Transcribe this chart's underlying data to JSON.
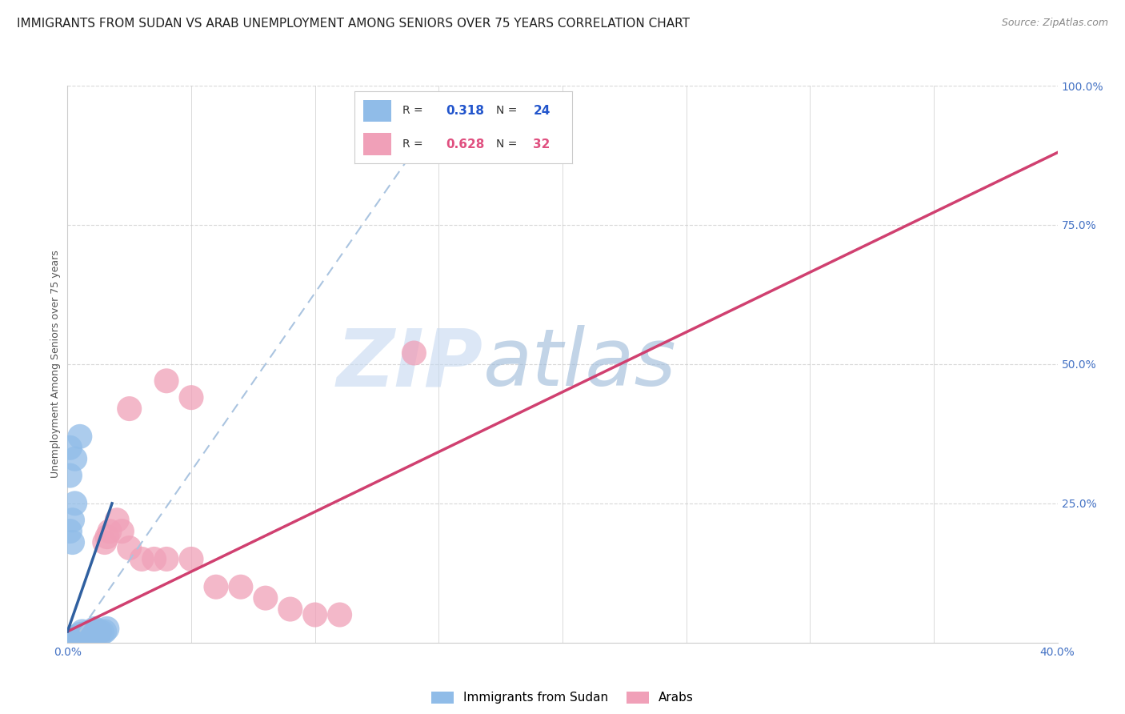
{
  "title": "IMMIGRANTS FROM SUDAN VS ARAB UNEMPLOYMENT AMONG SENIORS OVER 75 YEARS CORRELATION CHART",
  "source": "Source: ZipAtlas.com",
  "ylabel": "Unemployment Among Seniors over 75 years",
  "xlim": [
    0.0,
    0.4
  ],
  "ylim": [
    0.0,
    1.0
  ],
  "xticks": [
    0.0,
    0.05,
    0.1,
    0.15,
    0.2,
    0.25,
    0.3,
    0.35,
    0.4
  ],
  "xticklabels": [
    "0.0%",
    "",
    "",
    "",
    "",
    "",
    "",
    "",
    "40.0%"
  ],
  "yticks_right": [
    0.0,
    0.25,
    0.5,
    0.75,
    1.0
  ],
  "yticklabels_right": [
    "",
    "25.0%",
    "50.0%",
    "75.0%",
    "100.0%"
  ],
  "blue_scatter": [
    [
      0.001,
      0.005
    ],
    [
      0.002,
      0.008
    ],
    [
      0.003,
      0.01
    ],
    [
      0.004,
      0.01
    ],
    [
      0.005,
      0.015
    ],
    [
      0.006,
      0.02
    ],
    [
      0.007,
      0.015
    ],
    [
      0.008,
      0.018
    ],
    [
      0.009,
      0.01
    ],
    [
      0.01,
      0.01
    ],
    [
      0.011,
      0.025
    ],
    [
      0.012,
      0.02
    ],
    [
      0.013,
      0.02
    ],
    [
      0.014,
      0.018
    ],
    [
      0.015,
      0.02
    ],
    [
      0.016,
      0.025
    ],
    [
      0.001,
      0.3
    ],
    [
      0.003,
      0.33
    ],
    [
      0.001,
      0.35
    ],
    [
      0.005,
      0.37
    ],
    [
      0.002,
      0.22
    ],
    [
      0.003,
      0.25
    ],
    [
      0.001,
      0.2
    ],
    [
      0.002,
      0.18
    ]
  ],
  "pink_scatter": [
    [
      0.002,
      0.005
    ],
    [
      0.003,
      0.01
    ],
    [
      0.004,
      0.008
    ],
    [
      0.005,
      0.01
    ],
    [
      0.006,
      0.005
    ],
    [
      0.007,
      0.008
    ],
    [
      0.008,
      0.01
    ],
    [
      0.009,
      0.005
    ],
    [
      0.01,
      0.015
    ],
    [
      0.011,
      0.01
    ],
    [
      0.012,
      0.015
    ],
    [
      0.013,
      0.018
    ],
    [
      0.015,
      0.18
    ],
    [
      0.016,
      0.19
    ],
    [
      0.017,
      0.2
    ],
    [
      0.02,
      0.22
    ],
    [
      0.022,
      0.2
    ],
    [
      0.025,
      0.17
    ],
    [
      0.03,
      0.15
    ],
    [
      0.035,
      0.15
    ],
    [
      0.04,
      0.15
    ],
    [
      0.05,
      0.15
    ],
    [
      0.06,
      0.1
    ],
    [
      0.07,
      0.1
    ],
    [
      0.08,
      0.08
    ],
    [
      0.09,
      0.06
    ],
    [
      0.1,
      0.05
    ],
    [
      0.11,
      0.05
    ],
    [
      0.025,
      0.42
    ],
    [
      0.04,
      0.47
    ],
    [
      0.05,
      0.44
    ],
    [
      0.14,
      0.52
    ]
  ],
  "blue_line_dashed": {
    "x": [
      0.005,
      0.155
    ],
    "y": [
      0.02,
      0.98
    ]
  },
  "blue_line_solid": {
    "x": [
      0.0,
      0.018
    ],
    "y": [
      0.02,
      0.25
    ]
  },
  "pink_line": {
    "x": [
      0.0,
      0.4
    ],
    "y": [
      0.02,
      0.88
    ]
  },
  "blue_dash_color": "#aac4e0",
  "blue_solid_color": "#3060a0",
  "pink_line_color": "#d04070",
  "blue_dot_color": "#90bce8",
  "pink_dot_color": "#f0a0b8",
  "watermark": "ZIPatlas",
  "watermark_zip_color": "#c8d8f0",
  "watermark_atlas_color": "#9ab8d8",
  "grid_color": "#d8d8d8",
  "title_fontsize": 11,
  "axis_label_fontsize": 9,
  "tick_fontsize": 10,
  "background_color": "#ffffff",
  "legend_R_color": "#2255cc",
  "legend_N_color": "#2255cc",
  "legend_text_color": "#333333",
  "bottom_legend_label1": "Immigrants from Sudan",
  "bottom_legend_label2": "Arabs"
}
